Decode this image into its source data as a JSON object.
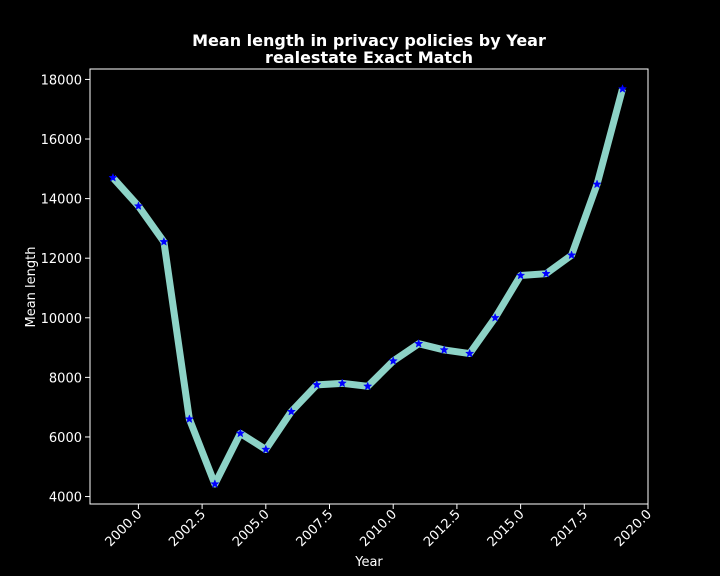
{
  "chart_data": {
    "type": "line",
    "title": "Mean length in privacy policies by Year",
    "subtitle": "realestate Exact Match",
    "xlabel": "Year",
    "ylabel": "Mean length",
    "xlim": [
      1998.1,
      2020.0
    ],
    "ylim": [
      3750,
      18350
    ],
    "x_ticks": [
      2000.0,
      2002.5,
      2005.0,
      2007.5,
      2010.0,
      2012.5,
      2015.0,
      2017.5,
      2020.0
    ],
    "x_tick_labels": [
      "2000.0",
      "2002.5",
      "2005.0",
      "2007.5",
      "2010.0",
      "2012.5",
      "2015.0",
      "2017.5",
      "2020.0"
    ],
    "y_ticks": [
      4000,
      6000,
      8000,
      10000,
      12000,
      14000,
      16000,
      18000
    ],
    "y_tick_labels": [
      "4000",
      "6000",
      "8000",
      "10000",
      "12000",
      "14000",
      "16000",
      "18000"
    ],
    "grid": false,
    "legend": "none",
    "line_color": "#8dd3c7",
    "marker_color": "#0000ff",
    "marker": "star",
    "series": [
      {
        "x": [
          1999,
          2000,
          2001,
          2002,
          2003,
          2004,
          2005,
          2006,
          2007,
          2008,
          2009,
          2010,
          2011,
          2012,
          2013,
          2014,
          2015,
          2016,
          2017,
          2018,
          2019
        ],
        "values": [
          14700,
          13750,
          12550,
          6600,
          4420,
          6120,
          5580,
          6850,
          7750,
          7800,
          7700,
          8550,
          9130,
          8920,
          8800,
          10000,
          11420,
          11480,
          12100,
          14480,
          17680
        ]
      }
    ]
  }
}
